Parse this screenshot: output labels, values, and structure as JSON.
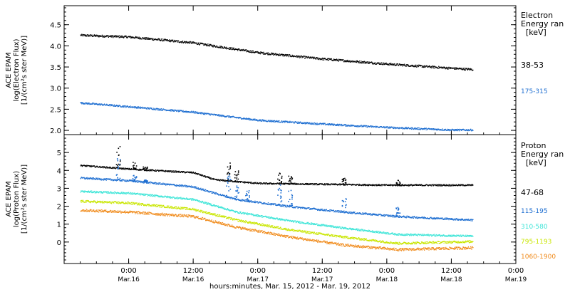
{
  "chart_data": [
    {
      "type": "scatter",
      "panel": "electron",
      "ylabel_lines": [
        "ACE EPAM",
        "log(Electron Flux)",
        "[1/(cm²s ster MeV)]"
      ],
      "ylim": [
        1.9,
        4.95
      ],
      "yticks": [
        2.0,
        2.5,
        3.0,
        3.5,
        4.0,
        4.5
      ],
      "ytick_labels": [
        "2.0",
        "2.5",
        "3.0",
        "3.5",
        "4.0",
        "4.5"
      ],
      "legend_title": [
        "Electron",
        "Energy ran",
        "[keV]"
      ],
      "legend_placement": "right",
      "series": [
        {
          "name": "38-53",
          "color": "#000000",
          "noise": 0.025,
          "points": [
            [
              -9,
              4.26
            ],
            [
              0,
              4.22
            ],
            [
              12,
              4.08
            ],
            [
              24,
              3.85
            ],
            [
              36,
              3.7
            ],
            [
              48,
              3.58
            ],
            [
              60,
              3.48
            ],
            [
              64,
              3.45
            ]
          ]
        },
        {
          "name": "175-315",
          "color": "#1f6fd1",
          "noise": 0.02,
          "points": [
            [
              -9,
              2.66
            ],
            [
              0,
              2.57
            ],
            [
              12,
              2.44
            ],
            [
              24,
              2.25
            ],
            [
              36,
              2.16
            ],
            [
              48,
              2.08
            ],
            [
              60,
              2.02
            ],
            [
              64,
              2.02
            ]
          ]
        }
      ]
    },
    {
      "type": "scatter",
      "panel": "proton",
      "ylabel_lines": [
        "ACE EPAM",
        "log(Proton Flux)",
        "[1/(cm²s ster MeV)]"
      ],
      "ylim": [
        -1.2,
        6.0
      ],
      "yticks": [
        0,
        1,
        2,
        3,
        4,
        5
      ],
      "ytick_labels": [
        "0",
        "1",
        "2",
        "3",
        "4",
        "5"
      ],
      "legend_title": [
        "Proton",
        "Energy ran",
        "[keV]"
      ],
      "legend_placement": "right",
      "series": [
        {
          "name": "47-68",
          "color": "#000000",
          "noise": 0.04,
          "points": [
            [
              -9,
              4.3
            ],
            [
              0,
              4.1
            ],
            [
              12,
              3.9
            ],
            [
              16,
              3.5
            ],
            [
              24,
              3.3
            ],
            [
              36,
              3.25
            ],
            [
              48,
              3.2
            ],
            [
              64,
              3.2
            ]
          ],
          "spikes": [
            [
              -2,
              5.4
            ],
            [
              1,
              4.5
            ],
            [
              3,
              4.3
            ],
            [
              18.5,
              4.5
            ],
            [
              20,
              4.0
            ],
            [
              28,
              3.9
            ],
            [
              30,
              3.8
            ],
            [
              40,
              3.6
            ],
            [
              50,
              3.5
            ]
          ]
        },
        {
          "name": "115-195",
          "color": "#1f6fd1",
          "noise": 0.05,
          "points": [
            [
              -9,
              3.6
            ],
            [
              0,
              3.45
            ],
            [
              12,
              3.1
            ],
            [
              20,
              2.4
            ],
            [
              30,
              2.0
            ],
            [
              40,
              1.7
            ],
            [
              50,
              1.45
            ],
            [
              64,
              1.25
            ]
          ],
          "spikes": [
            [
              -2,
              4.7
            ],
            [
              1,
              3.8
            ],
            [
              3,
              3.5
            ],
            [
              18.5,
              3.9
            ],
            [
              20,
              3.2
            ],
            [
              22,
              2.9
            ],
            [
              28,
              3.3
            ],
            [
              30,
              3.0
            ],
            [
              40,
              2.5
            ],
            [
              50,
              2.0
            ]
          ]
        },
        {
          "name": "310-580",
          "color": "#3fe5d8",
          "noise": 0.05,
          "points": [
            [
              -9,
              2.85
            ],
            [
              0,
              2.75
            ],
            [
              12,
              2.4
            ],
            [
              20,
              1.7
            ],
            [
              30,
              1.2
            ],
            [
              40,
              0.8
            ],
            [
              50,
              0.45
            ],
            [
              64,
              0.35
            ]
          ]
        },
        {
          "name": "795-1193",
          "color": "#c9e600",
          "noise": 0.06,
          "points": [
            [
              -9,
              2.3
            ],
            [
              0,
              2.2
            ],
            [
              12,
              1.85
            ],
            [
              20,
              1.25
            ],
            [
              30,
              0.7
            ],
            [
              40,
              0.3
            ],
            [
              50,
              -0.05
            ],
            [
              64,
              0.05
            ]
          ]
        },
        {
          "name": "1060-1900",
          "color": "#f08a1a",
          "noise": 0.07,
          "points": [
            [
              -9,
              1.8
            ],
            [
              0,
              1.7
            ],
            [
              12,
              1.45
            ],
            [
              20,
              0.85
            ],
            [
              30,
              0.3
            ],
            [
              40,
              -0.15
            ],
            [
              50,
              -0.4
            ],
            [
              64,
              -0.3
            ]
          ]
        }
      ]
    }
  ],
  "x_axis": {
    "range_hours": [
      -12,
      72
    ],
    "ticks": [
      {
        "h": 0,
        "time": "0:00",
        "date": "Mar.16"
      },
      {
        "h": 12,
        "time": "12:00",
        "date": "Mar.16"
      },
      {
        "h": 24,
        "time": "0:00",
        "date": "Mar.17"
      },
      {
        "h": 36,
        "time": "12:00",
        "date": "Mar.17"
      },
      {
        "h": 48,
        "time": "0:00",
        "date": "Mar.18"
      },
      {
        "h": 60,
        "time": "12:00",
        "date": "Mar.18"
      },
      {
        "h": 72,
        "time": "0:00",
        "date": "Mar.19"
      }
    ],
    "title": "hours:minutes, Mar. 15, 2012 - Mar. 19, 2012"
  }
}
